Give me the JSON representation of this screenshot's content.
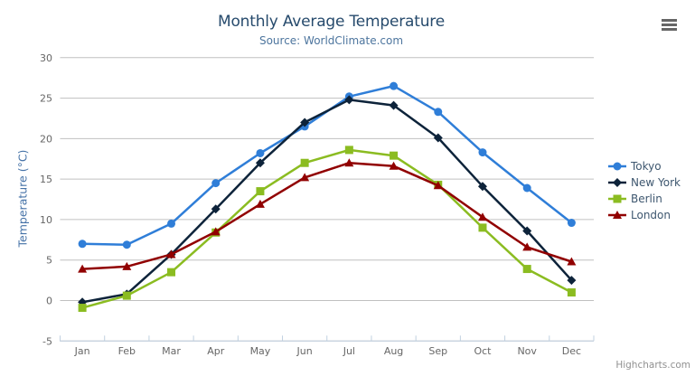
{
  "chart_data": {
    "type": "line",
    "title": "Monthly Average Temperature",
    "subtitle": "Source: WorldClimate.com",
    "xlabel": "",
    "ylabel": "Temperature (°C)",
    "categories": [
      "Jan",
      "Feb",
      "Mar",
      "Apr",
      "May",
      "Jun",
      "Jul",
      "Aug",
      "Sep",
      "Oct",
      "Nov",
      "Dec"
    ],
    "yticks": [
      -5,
      0,
      5,
      10,
      15,
      20,
      25,
      30
    ],
    "ylim": [
      -5,
      30
    ],
    "grid": true,
    "legend_position": "right",
    "series": [
      {
        "name": "Tokyo",
        "color": "#2f7ed8",
        "marker": "circle",
        "values": [
          7.0,
          6.9,
          9.5,
          14.5,
          18.2,
          21.5,
          25.2,
          26.5,
          23.3,
          18.3,
          13.9,
          9.6
        ]
      },
      {
        "name": "New York",
        "color": "#0d233a",
        "marker": "diamond",
        "values": [
          -0.2,
          0.8,
          5.7,
          11.3,
          17.0,
          22.0,
          24.8,
          24.1,
          20.1,
          14.1,
          8.6,
          2.5
        ]
      },
      {
        "name": "Berlin",
        "color": "#8bbc21",
        "marker": "square",
        "values": [
          -0.9,
          0.6,
          3.5,
          8.4,
          13.5,
          17.0,
          18.6,
          17.9,
          14.3,
          9.0,
          3.9,
          1.0
        ]
      },
      {
        "name": "London",
        "color": "#910000",
        "marker": "triangle",
        "values": [
          3.9,
          4.2,
          5.7,
          8.5,
          11.9,
          15.2,
          17.0,
          16.6,
          14.2,
          10.3,
          6.6,
          4.8
        ]
      }
    ]
  },
  "credits": "Highcharts.com",
  "icons": {
    "context_menu": "hamburger-icon"
  }
}
